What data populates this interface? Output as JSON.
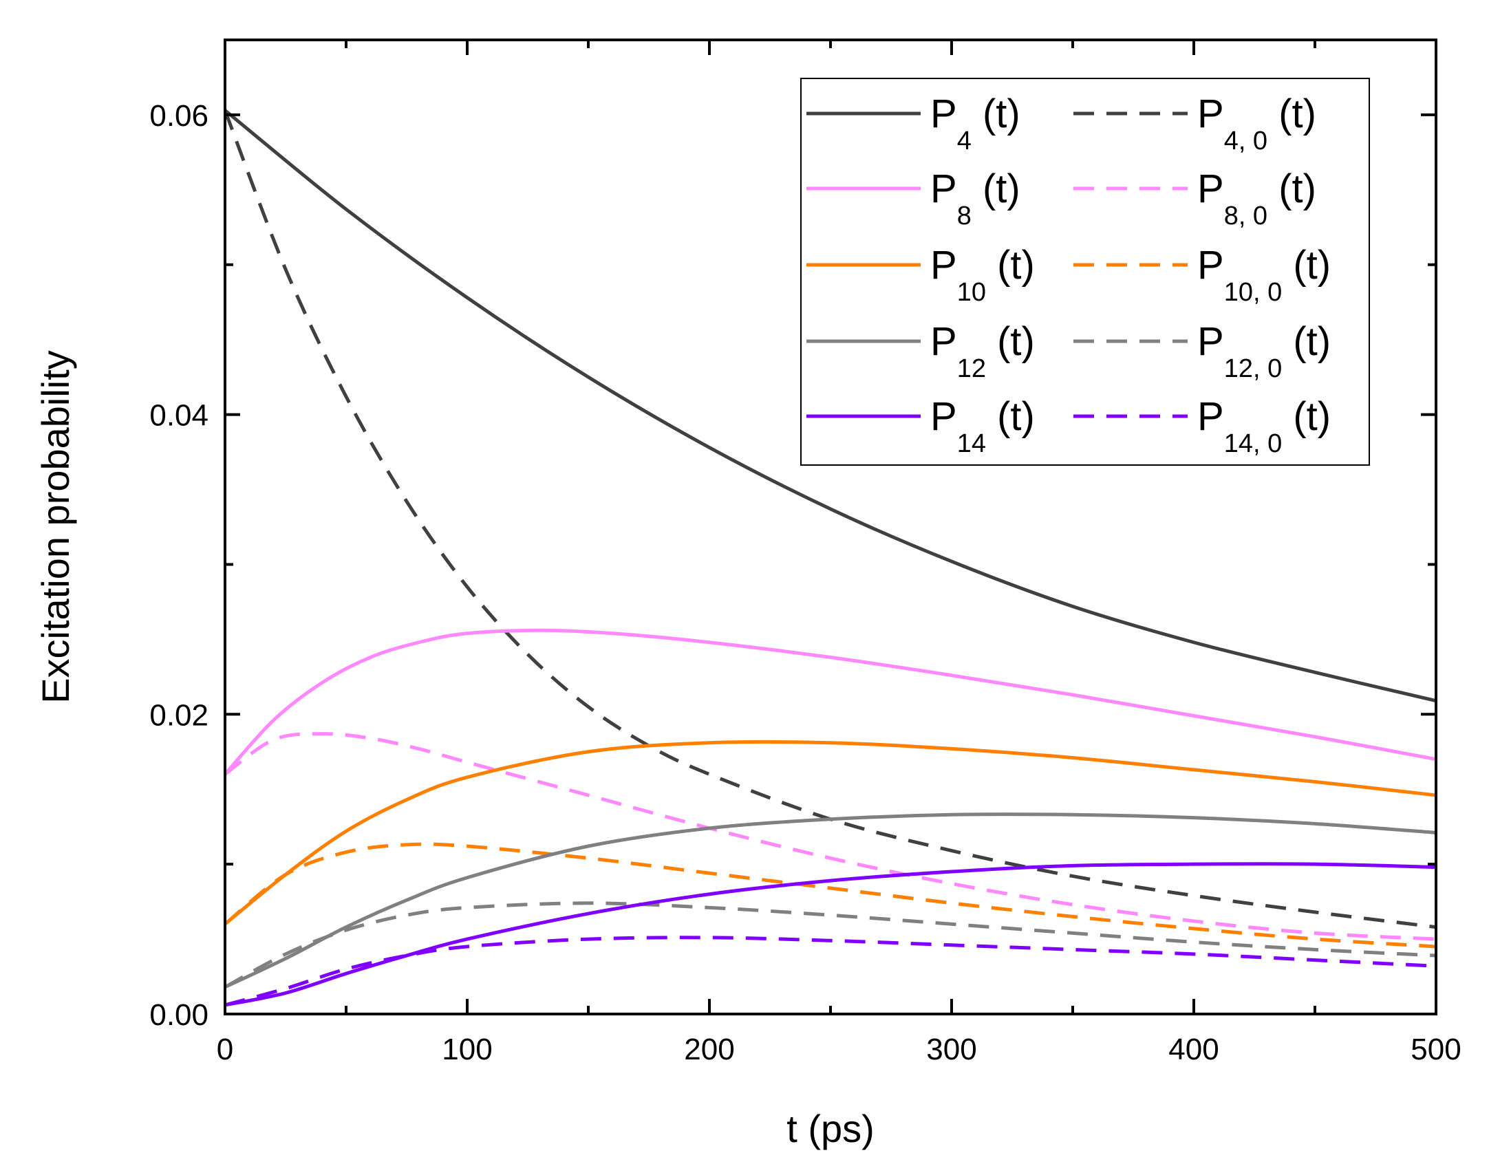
{
  "chart_data": {
    "type": "line",
    "title": "",
    "xlabel": "t (ps)",
    "ylabel": "Excitation probability",
    "xlim": [
      0,
      500
    ],
    "ylim": [
      0,
      0.065
    ],
    "x_ticks": [
      0,
      100,
      200,
      300,
      400,
      500
    ],
    "x_tick_labels": [
      "0",
      "100",
      "200",
      "300",
      "400",
      "500"
    ],
    "y_ticks": [
      0,
      0.02,
      0.04,
      0.06
    ],
    "y_tick_labels": [
      "0.00",
      "0.02",
      "0.04",
      "0.06"
    ],
    "grid": false,
    "legend_position": "top-right",
    "series": [
      {
        "name": "P4 (t)",
        "symbol": "P",
        "sub": "4",
        "suffix": " (t)",
        "color": "#404040",
        "dash": "solid",
        "x": [
          0,
          50,
          100,
          150,
          200,
          250,
          300,
          350,
          400,
          450,
          500
        ],
        "y": [
          0.0603,
          0.0537,
          0.0478,
          0.0425,
          0.0378,
          0.0337,
          0.0302,
          0.0272,
          0.0248,
          0.0228,
          0.0209
        ]
      },
      {
        "name": "P4, 0 (t)",
        "symbol": "P",
        "sub": "4, 0",
        "suffix": " (t)",
        "color": "#404040",
        "dash": "dashed",
        "x": [
          0,
          25,
          50,
          75,
          100,
          125,
          150,
          175,
          200,
          250,
          300,
          350,
          400,
          450,
          500
        ],
        "y": [
          0.0603,
          0.0497,
          0.0412,
          0.0342,
          0.0285,
          0.024,
          0.0205,
          0.0179,
          0.016,
          0.013,
          0.0109,
          0.0092,
          0.0079,
          0.0068,
          0.0058
        ]
      },
      {
        "name": "P8 (t)",
        "symbol": "P",
        "sub": "8",
        "suffix": " (t)",
        "color": "#ff88ff",
        "dash": "solid",
        "x": [
          0,
          20,
          40,
          60,
          80,
          100,
          130,
          160,
          200,
          250,
          300,
          350,
          400,
          450,
          500
        ],
        "y": [
          0.016,
          0.0196,
          0.0221,
          0.0238,
          0.0248,
          0.0254,
          0.0256,
          0.0254,
          0.0248,
          0.0238,
          0.0226,
          0.0213,
          0.0199,
          0.0185,
          0.017
        ]
      },
      {
        "name": "P8, 0 (t)",
        "symbol": "P",
        "sub": "8, 0",
        "suffix": " (t)",
        "color": "#ff88ff",
        "dash": "dashed",
        "x": [
          0,
          20,
          40,
          60,
          80,
          100,
          150,
          200,
          250,
          300,
          350,
          400,
          450,
          500
        ],
        "y": [
          0.016,
          0.0183,
          0.0187,
          0.0184,
          0.0177,
          0.0168,
          0.0146,
          0.0124,
          0.0104,
          0.0087,
          0.0073,
          0.0062,
          0.0054,
          0.005
        ]
      },
      {
        "name": "P10 (t)",
        "symbol": "P",
        "sub": "10",
        "suffix": " (t)",
        "color": "#ff8000",
        "dash": "solid",
        "x": [
          0,
          25,
          50,
          75,
          100,
          150,
          200,
          250,
          300,
          350,
          400,
          450,
          500
        ],
        "y": [
          0.006,
          0.0093,
          0.0122,
          0.0143,
          0.0158,
          0.0175,
          0.0181,
          0.0181,
          0.0177,
          0.0171,
          0.0163,
          0.0155,
          0.0146
        ]
      },
      {
        "name": "P10, 0 (t)",
        "symbol": "P",
        "sub": "10, 0",
        "suffix": " (t)",
        "color": "#ff8000",
        "dash": "dashed",
        "x": [
          0,
          25,
          50,
          75,
          100,
          150,
          200,
          250,
          300,
          350,
          400,
          450,
          500
        ],
        "y": [
          0.006,
          0.0093,
          0.0108,
          0.0113,
          0.0112,
          0.0104,
          0.0094,
          0.0084,
          0.0074,
          0.0065,
          0.0057,
          0.005,
          0.0045
        ]
      },
      {
        "name": "P12 (t)",
        "symbol": "P",
        "sub": "12",
        "suffix": " (t)",
        "color": "#808080",
        "dash": "solid",
        "x": [
          0,
          25,
          50,
          75,
          100,
          150,
          200,
          250,
          300,
          350,
          400,
          450,
          500
        ],
        "y": [
          0.0018,
          0.0037,
          0.0058,
          0.0076,
          0.0091,
          0.0112,
          0.0124,
          0.013,
          0.0133,
          0.0133,
          0.0131,
          0.0127,
          0.0121
        ]
      },
      {
        "name": "P12, 0 (t)",
        "symbol": "P",
        "sub": "12, 0",
        "suffix": " (t)",
        "color": "#808080",
        "dash": "dashed",
        "x": [
          0,
          25,
          50,
          75,
          100,
          150,
          200,
          250,
          300,
          350,
          400,
          450,
          500
        ],
        "y": [
          0.0018,
          0.004,
          0.0056,
          0.0066,
          0.0071,
          0.0074,
          0.0071,
          0.0066,
          0.006,
          0.0054,
          0.0048,
          0.0043,
          0.0039
        ]
      },
      {
        "name": "P14 (t)",
        "symbol": "P",
        "sub": "14",
        "suffix": " (t)",
        "color": "#8000ff",
        "dash": "solid",
        "x": [
          0,
          25,
          50,
          75,
          100,
          150,
          200,
          250,
          300,
          350,
          400,
          450,
          500
        ],
        "y": [
          0.0006,
          0.0014,
          0.0027,
          0.0039,
          0.005,
          0.0067,
          0.008,
          0.0089,
          0.0095,
          0.0099,
          0.01,
          0.01,
          0.0098
        ]
      },
      {
        "name": "P14, 0 (t)",
        "symbol": "P",
        "sub": "14, 0",
        "suffix": " (t)",
        "color": "#8000ff",
        "dash": "dashed",
        "x": [
          0,
          25,
          50,
          75,
          100,
          150,
          200,
          250,
          300,
          350,
          400,
          450,
          500
        ],
        "y": [
          0.0006,
          0.0017,
          0.003,
          0.0039,
          0.0045,
          0.005,
          0.0051,
          0.0049,
          0.0046,
          0.0043,
          0.004,
          0.0036,
          0.0032
        ]
      }
    ]
  }
}
